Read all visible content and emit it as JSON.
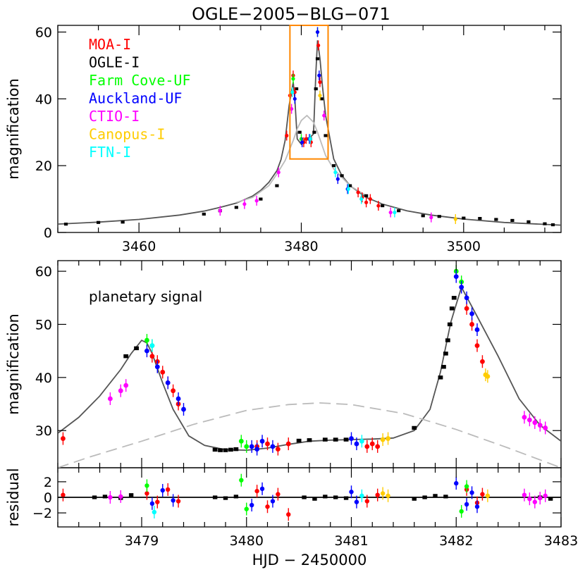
{
  "chart_data": [
    {
      "panel": "overview",
      "type": "scatter",
      "title": "OGLE−2005−BLG−071",
      "ylabel": "magnification",
      "xlim": [
        3450,
        3512
      ],
      "ylim": [
        0,
        62
      ],
      "xticks": [
        3460,
        3480,
        3500
      ],
      "yticks": [
        0,
        20,
        40,
        60
      ],
      "grid": false,
      "legend_position": "top-left",
      "legend": [
        {
          "name": "MOA-I",
          "color": "#ff0000"
        },
        {
          "name": "OGLE-I",
          "color": "#000000"
        },
        {
          "name": "Farm Cove-UF",
          "color": "#00ff00"
        },
        {
          "name": "Auckland-UF",
          "color": "#0000ff"
        },
        {
          "name": "CTIO-I",
          "color": "#ff00ff"
        },
        {
          "name": "Canopus-I",
          "color": "#ffcc00"
        },
        {
          "name": "FTN-I",
          "color": "#00ffff"
        }
      ],
      "zoom_box": {
        "x": [
          3478.6,
          3483.3
        ],
        "y": [
          22,
          62
        ],
        "color": "#ff8800"
      },
      "model_curves": [
        {
          "style": "solid",
          "color": "#555555",
          "x": [
            3450,
            3455,
            3460,
            3465,
            3468,
            3470,
            3472,
            3474,
            3475,
            3476,
            3477,
            3477.5,
            3478,
            3478.5,
            3479,
            3479.2,
            3479.5,
            3480,
            3480.5,
            3481,
            3481.5,
            3481.8,
            3482,
            3482.3,
            3482.6,
            3483,
            3484,
            3485,
            3486,
            3488,
            3490,
            3493,
            3496,
            3500,
            3505,
            3512
          ],
          "y": [
            2.5,
            3.1,
            3.9,
            5.2,
            6.4,
            7.5,
            8.8,
            10.9,
            12.6,
            15.0,
            18.5,
            21.8,
            27.5,
            38,
            45,
            40,
            28,
            26.4,
            28,
            28.2,
            29.5,
            48,
            57.5,
            52,
            44,
            35,
            22,
            17,
            14,
            10.5,
            8.5,
            6.5,
            5.2,
            4.0,
            3.0,
            2.2
          ]
        },
        {
          "style": "solid",
          "color": "#bbbbbb",
          "x": [
            3472,
            3474,
            3476,
            3477,
            3478,
            3478.5,
            3479,
            3479.5,
            3480,
            3480.7,
            3481.5,
            3482,
            3482.5,
            3483,
            3484,
            3486,
            3488
          ],
          "y": [
            9,
            10.5,
            14,
            17.5,
            21.5,
            24.5,
            27.5,
            31,
            33.5,
            35,
            33,
            30,
            26.5,
            23,
            19,
            14,
            11
          ]
        }
      ],
      "series": [
        {
          "name": "OGLE-I",
          "color": "#000000",
          "x": [
            3451,
            3455,
            3458,
            3468,
            3470,
            3472,
            3475,
            3477,
            3479.4,
            3479.8,
            3480.2,
            3480.7,
            3481.1,
            3481.6,
            3481.8,
            3482.0,
            3482.5,
            3483,
            3484,
            3485,
            3486,
            3488,
            3490,
            3492,
            3495,
            3497,
            3500,
            3502,
            3504,
            3506,
            3508,
            3510,
            3511
          ],
          "y": [
            2.5,
            3.0,
            3.1,
            5.5,
            6.5,
            7.5,
            10,
            14,
            43,
            30,
            27,
            28,
            28,
            30,
            43,
            52,
            40,
            29,
            20,
            17,
            14,
            11,
            8,
            6.5,
            5,
            4.8,
            4.3,
            4.2,
            3.9,
            3.6,
            3.2,
            2.6,
            2.3
          ]
        },
        {
          "name": "MOA-I",
          "color": "#ff0000",
          "x": [
            3478.2,
            3478.6,
            3479.0,
            3479.2,
            3480.3,
            3480.6,
            3481.2,
            3482.1,
            3482.3,
            3487,
            3487.5,
            3488,
            3488.5,
            3489.5
          ],
          "y": [
            29,
            41,
            47,
            42,
            27,
            28,
            27,
            56,
            45,
            12,
            10.5,
            9,
            10,
            8
          ]
        },
        {
          "name": "Farm Cove-UF",
          "color": "#00ff00",
          "x": [
            3479.0,
            3480.0,
            3482.0
          ],
          "y": [
            46,
            28,
            60
          ]
        },
        {
          "name": "Auckland-UF",
          "color": "#0000ff",
          "x": [
            3479.2,
            3480.1,
            3481.0,
            3482.0,
            3482.2,
            3484.5,
            3485.7
          ],
          "y": [
            40,
            27,
            28,
            60,
            47,
            16,
            13
          ]
        },
        {
          "name": "CTIO-I",
          "color": "#ff00ff",
          "x": [
            3470,
            3473,
            3474.5,
            3477.2,
            3478.8,
            3482.8,
            3491,
            3496
          ],
          "y": [
            6.5,
            8.5,
            9.5,
            18,
            37,
            35,
            6,
            4.5
          ]
        },
        {
          "name": "Canopus-I",
          "color": "#ffcc00",
          "x": [
            3482.3,
            3499
          ],
          "y": [
            41,
            4
          ]
        },
        {
          "name": "FTN-I",
          "color": "#00ffff",
          "x": [
            3478.9,
            3481.1,
            3484.2,
            3485.8,
            3487.4,
            3491.5
          ],
          "y": [
            42,
            28,
            18,
            13,
            10,
            6
          ]
        }
      ]
    },
    {
      "panel": "zoom",
      "type": "scatter",
      "ylabel": "magnification",
      "xlim": [
        3478.2,
        3483
      ],
      "ylim": [
        23,
        62
      ],
      "xticks": [
        3479,
        3480,
        3481,
        3482,
        3483
      ],
      "yticks": [
        30,
        40,
        50,
        60
      ],
      "grid": false,
      "annotation": "planetary signal",
      "model_curves": [
        {
          "style": "solid",
          "color": "#555555",
          "x": [
            3478.2,
            3478.4,
            3478.6,
            3478.8,
            3478.9,
            3479.0,
            3479.05,
            3479.1,
            3479.2,
            3479.3,
            3479.45,
            3479.6,
            3479.8,
            3480.0,
            3480.2,
            3480.4,
            3480.6,
            3480.8,
            3481.0,
            3481.2,
            3481.4,
            3481.6,
            3481.75,
            3481.85,
            3481.95,
            3482.05,
            3482.2,
            3482.4,
            3482.6,
            3482.8,
            3483.0
          ],
          "y": [
            29.5,
            32.5,
            36.5,
            41.5,
            44.5,
            47,
            46.5,
            44.5,
            39,
            34,
            29,
            27.2,
            26.4,
            26.3,
            26.7,
            27.4,
            28,
            28.2,
            28.3,
            28.4,
            28.6,
            30,
            34,
            41,
            50.5,
            57,
            51.5,
            44,
            36,
            31,
            28
          ]
        },
        {
          "style": "dashed",
          "color": "#bbbbbb",
          "x": [
            3478.2,
            3478.5,
            3479.0,
            3479.5,
            3480.0,
            3480.4,
            3480.7,
            3481.0,
            3481.5,
            3482.0,
            3482.5,
            3483.0
          ],
          "y": [
            23,
            25,
            28,
            31.2,
            33.8,
            34.9,
            35.2,
            34.9,
            33.2,
            30.2,
            26.7,
            23
          ]
        }
      ],
      "series": [
        {
          "name": "OGLE-I",
          "color": "#000000",
          "x": [
            3478.85,
            3478.95,
            3479.7,
            3479.75,
            3479.8,
            3479.85,
            3479.9,
            3480.5,
            3480.6,
            3480.75,
            3480.85,
            3480.95,
            3481.6,
            3481.85,
            3481.88,
            3481.9,
            3481.92,
            3481.94,
            3481.96,
            3481.98
          ],
          "y": [
            44,
            45.5,
            26.4,
            26.3,
            26.3,
            26.4,
            26.5,
            28.1,
            28.2,
            28.3,
            28.3,
            28.3,
            30.5,
            40,
            42,
            44.5,
            47,
            50,
            53,
            55
          ]
        },
        {
          "name": "MOA-I",
          "color": "#ff0000",
          "x": [
            3478.25,
            3479.1,
            3479.15,
            3479.2,
            3479.25,
            3479.3,
            3479.35,
            3480.1,
            3480.2,
            3480.3,
            3480.4,
            3481.15,
            3481.2,
            3481.25,
            3482.1,
            3482.15,
            3482.2,
            3482.25
          ],
          "y": [
            28.5,
            44,
            43,
            41,
            39,
            37.5,
            35,
            27,
            27.5,
            26.5,
            27.5,
            27,
            27.5,
            27,
            53,
            50,
            46,
            43
          ]
        },
        {
          "name": "Farm Cove-UF",
          "color": "#00ff00",
          "x": [
            3479.05,
            3479.1,
            3479.95,
            3480.0,
            3482.0,
            3482.05
          ],
          "y": [
            47,
            46,
            28,
            27,
            60,
            58
          ]
        },
        {
          "name": "Auckland-UF",
          "color": "#0000ff",
          "x": [
            3479.05,
            3479.15,
            3479.25,
            3479.35,
            3479.4,
            3480.05,
            3480.1,
            3480.15,
            3480.25,
            3481.0,
            3481.05,
            3482.0,
            3482.05,
            3482.1,
            3482.15,
            3482.2
          ],
          "y": [
            45,
            42,
            39,
            36,
            34,
            27,
            26.5,
            28,
            27,
            28.5,
            27.5,
            59,
            57,
            55,
            52,
            49
          ]
        },
        {
          "name": "CTIO-I",
          "color": "#ff00ff",
          "x": [
            3478.7,
            3478.8,
            3478.85,
            3482.65,
            3482.7,
            3482.75,
            3482.8,
            3482.85
          ],
          "y": [
            36,
            37.5,
            38.5,
            32.5,
            32,
            31.5,
            31,
            30.5
          ]
        },
        {
          "name": "Canopus-I",
          "color": "#ffcc00",
          "x": [
            3481.3,
            3481.35,
            3482.28,
            3482.3
          ],
          "y": [
            28.3,
            28.5,
            40.5,
            40.2
          ]
        },
        {
          "name": "FTN-I",
          "color": "#00ffff",
          "x": [
            3479.1,
            3481.1
          ],
          "y": [
            46,
            28
          ]
        }
      ]
    },
    {
      "panel": "residual",
      "type": "scatter",
      "ylabel": "residual",
      "xlabel": "HJD − 2450000",
      "xlim": [
        3478.2,
        3483
      ],
      "ylim": [
        -3.8,
        3.8
      ],
      "xticks": [
        3479,
        3480,
        3481,
        3482,
        3483
      ],
      "yticks": [
        -2,
        0,
        2
      ],
      "grid": false,
      "series": [
        {
          "name": "OGLE-I",
          "color": "#000000",
          "x": [
            3478.55,
            3478.65,
            3478.8,
            3478.9,
            3479.7,
            3479.8,
            3479.9,
            3480.55,
            3480.65,
            3480.75,
            3480.85,
            3480.95,
            3481.6,
            3481.7,
            3481.8,
            3481.9,
            3482.8,
            3482.9
          ],
          "y": [
            0,
            0.1,
            -0.1,
            0.3,
            0,
            -0.1,
            0.1,
            0,
            -0.2,
            0.1,
            0,
            -0.1,
            -0.2,
            0,
            0.2,
            0.1,
            0,
            -0.2
          ]
        },
        {
          "name": "MOA-I",
          "color": "#ff0000",
          "x": [
            3478.25,
            3479.05,
            3479.15,
            3479.25,
            3479.35,
            3480.1,
            3480.2,
            3480.3,
            3480.4,
            3481.15,
            3481.25,
            3482.1,
            3482.2,
            3482.25
          ],
          "y": [
            0.3,
            0.5,
            -0.6,
            1,
            -0.5,
            0.8,
            -1.2,
            0.4,
            -2.2,
            -0.5,
            0.3,
            1,
            -0.7,
            0.4
          ]
        },
        {
          "name": "Farm Cove-UF",
          "color": "#00ff00",
          "x": [
            3479.05,
            3479.95,
            3480.0,
            3482.05,
            3482.1
          ],
          "y": [
            1.5,
            2.2,
            -1.5,
            -1.8,
            1.4
          ]
        },
        {
          "name": "Auckland-UF",
          "color": "#0000ff",
          "x": [
            3479.1,
            3479.2,
            3479.3,
            3480.05,
            3480.15,
            3480.25,
            3481.0,
            3481.05,
            3482.0,
            3482.1,
            3482.15,
            3482.2
          ],
          "y": [
            -0.8,
            0.9,
            -0.4,
            -1,
            1.1,
            -0.5,
            0.7,
            -0.6,
            1.8,
            -0.9,
            0.6,
            -1.2
          ]
        },
        {
          "name": "CTIO-I",
          "color": "#ff00ff",
          "x": [
            3478.7,
            3478.8,
            3482.65,
            3482.7,
            3482.75,
            3482.8,
            3482.85
          ],
          "y": [
            0,
            0.1,
            0.3,
            -0.2,
            -0.6,
            -0.1,
            0.2
          ]
        },
        {
          "name": "Canopus-I",
          "color": "#ffcc00",
          "x": [
            3481.3,
            3481.35,
            3482.3
          ],
          "y": [
            0.5,
            0.2,
            0.2
          ]
        },
        {
          "name": "FTN-I",
          "color": "#00ffff",
          "x": [
            3479.12,
            3481.1
          ],
          "y": [
            -1.9,
            0.2
          ]
        }
      ]
    }
  ]
}
